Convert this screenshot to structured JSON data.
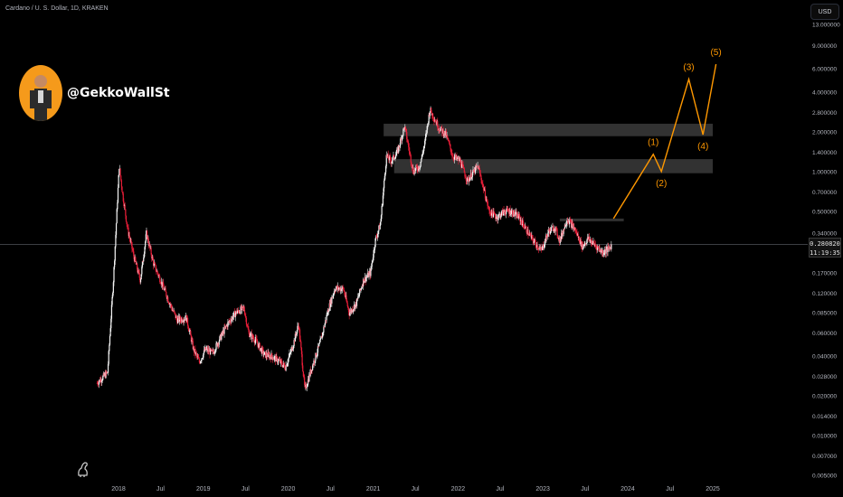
{
  "header": {
    "symbol": "Cardano / U. S. Dollar, 1D, KRAKEN",
    "currency_button": "USD"
  },
  "watermark": {
    "handle": "@GekkoWallSt"
  },
  "price_tag": {
    "price": "0.280820",
    "countdown": "11:19:35"
  },
  "colors": {
    "candle_up": "#f5f5f5",
    "candle_down": "#e91e38",
    "wave_projection": "#ff9800",
    "zone": "#3b3b3b",
    "current_price_line": "#787b86"
  },
  "icons": {
    "logo": "dinosaur-icon"
  },
  "chart_data": {
    "type": "candlestick",
    "scale": "log",
    "y_ticks": [
      "13.000000",
      "9.000000",
      "6.000000",
      "4.000000",
      "2.800000",
      "2.000000",
      "1.400000",
      "1.000000",
      "0.700000",
      "0.500000",
      "0.340000",
      "0.240000",
      "0.170000",
      "0.120000",
      "0.085000",
      "0.060000",
      "0.040000",
      "0.028000",
      "0.020000",
      "0.014000",
      "0.010000",
      "0.007000",
      "0.005000"
    ],
    "x_ticks": [
      "2018",
      "Jul",
      "2019",
      "Jul",
      "2020",
      "Jul",
      "2021",
      "Jul",
      "2022",
      "Jul",
      "2023",
      "Jul",
      "2024",
      "Jul",
      "2025"
    ],
    "current_price": 0.28082,
    "price_path": [
      [
        "2017-10-01",
        0.025
      ],
      [
        "2017-11-15",
        0.03
      ],
      [
        "2017-12-10",
        0.15
      ],
      [
        "2018-01-04",
        1.1
      ],
      [
        "2018-01-20",
        0.65
      ],
      [
        "2018-02-10",
        0.36
      ],
      [
        "2018-03-10",
        0.22
      ],
      [
        "2018-04-05",
        0.15
      ],
      [
        "2018-05-01",
        0.34
      ],
      [
        "2018-06-01",
        0.2
      ],
      [
        "2018-07-01",
        0.15
      ],
      [
        "2018-08-10",
        0.1
      ],
      [
        "2018-09-10",
        0.075
      ],
      [
        "2018-10-20",
        0.078
      ],
      [
        "2018-11-20",
        0.045
      ],
      [
        "2018-12-15",
        0.036
      ],
      [
        "2019-01-10",
        0.045
      ],
      [
        "2019-02-10",
        0.042
      ],
      [
        "2019-03-15",
        0.055
      ],
      [
        "2019-04-15",
        0.07
      ],
      [
        "2019-05-20",
        0.085
      ],
      [
        "2019-06-25",
        0.092
      ],
      [
        "2019-07-15",
        0.06
      ],
      [
        "2019-08-15",
        0.052
      ],
      [
        "2019-09-20",
        0.041
      ],
      [
        "2019-10-20",
        0.04
      ],
      [
        "2019-11-20",
        0.037
      ],
      [
        "2019-12-20",
        0.033
      ],
      [
        "2020-01-20",
        0.047
      ],
      [
        "2020-02-15",
        0.07
      ],
      [
        "2020-03-13",
        0.022
      ],
      [
        "2020-04-15",
        0.034
      ],
      [
        "2020-05-20",
        0.052
      ],
      [
        "2020-06-20",
        0.088
      ],
      [
        "2020-07-20",
        0.13
      ],
      [
        "2020-08-25",
        0.13
      ],
      [
        "2020-09-20",
        0.085
      ],
      [
        "2020-10-20",
        0.1
      ],
      [
        "2020-11-20",
        0.15
      ],
      [
        "2020-12-20",
        0.17
      ],
      [
        "2021-01-10",
        0.3
      ],
      [
        "2021-02-01",
        0.4
      ],
      [
        "2021-02-27",
        1.3
      ],
      [
        "2021-03-20",
        1.2
      ],
      [
        "2021-04-15",
        1.4
      ],
      [
        "2021-05-16",
        2.2
      ],
      [
        "2021-06-22",
        1.0
      ],
      [
        "2021-07-20",
        1.1
      ],
      [
        "2021-08-10",
        1.6
      ],
      [
        "2021-09-02",
        2.95
      ],
      [
        "2021-10-10",
        2.15
      ],
      [
        "2021-11-10",
        1.9
      ],
      [
        "2021-12-10",
        1.3
      ],
      [
        "2022-01-10",
        1.2
      ],
      [
        "2022-02-10",
        0.85
      ],
      [
        "2022-03-28",
        1.1
      ],
      [
        "2022-05-15",
        0.5
      ],
      [
        "2022-06-18",
        0.45
      ],
      [
        "2022-07-20",
        0.5
      ],
      [
        "2022-08-15",
        0.5
      ],
      [
        "2022-09-20",
        0.45
      ],
      [
        "2022-11-09",
        0.32
      ],
      [
        "2022-12-25",
        0.25
      ],
      [
        "2023-01-25",
        0.35
      ],
      [
        "2023-02-20",
        0.38
      ],
      [
        "2023-03-15",
        0.3
      ],
      [
        "2023-04-16",
        0.44
      ],
      [
        "2023-05-20",
        0.36
      ],
      [
        "2023-06-20",
        0.27
      ],
      [
        "2023-07-15",
        0.31
      ],
      [
        "2023-08-20",
        0.27
      ],
      [
        "2023-09-15",
        0.245
      ],
      [
        "2023-10-14",
        0.26
      ],
      [
        "2023-10-24",
        0.281
      ]
    ],
    "zones": [
      {
        "from": "2021-02-15",
        "to": "2025-01-01",
        "low": 1.85,
        "high": 2.3
      },
      {
        "from": "2021-04-01",
        "to": "2025-01-01",
        "low": 0.97,
        "high": 1.24
      },
      {
        "from": "2023-03-15",
        "to": "2023-12-15",
        "low": 0.42,
        "high": 0.44
      }
    ],
    "wave_projection": [
      {
        "date": "2023-11-01",
        "price": 0.44,
        "label": ""
      },
      {
        "date": "2024-04-20",
        "price": 1.35,
        "label": "(1)"
      },
      {
        "date": "2024-05-25",
        "price": 1.0,
        "label": "(2)"
      },
      {
        "date": "2024-09-20",
        "price": 5.0,
        "label": "(3)"
      },
      {
        "date": "2024-11-20",
        "price": 1.9,
        "label": "(4)"
      },
      {
        "date": "2025-01-15",
        "price": 6.5,
        "label": "(5)"
      }
    ]
  }
}
